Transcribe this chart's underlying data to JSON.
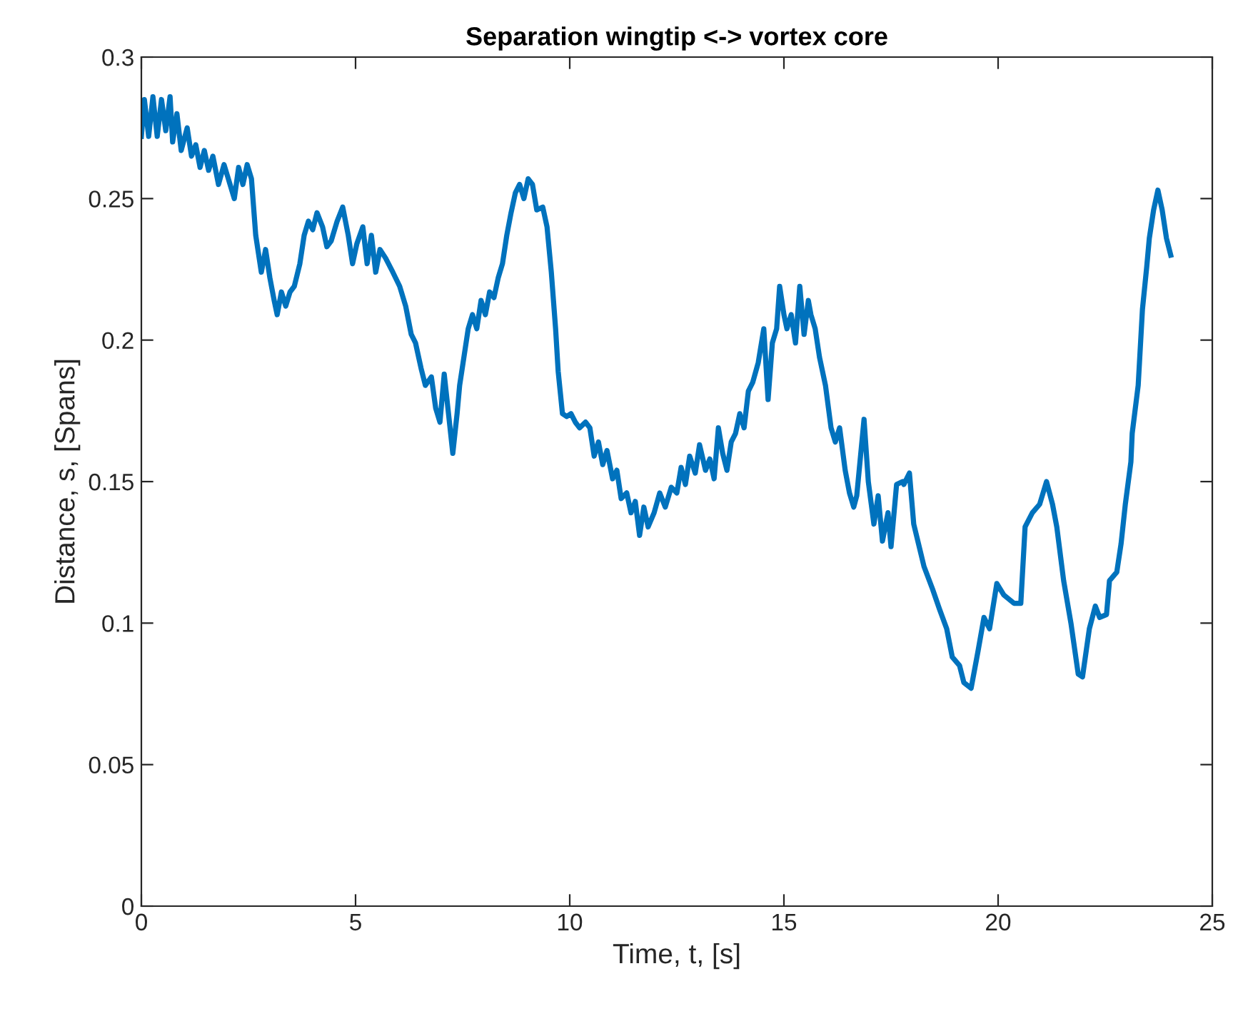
{
  "chart_data": {
    "type": "line",
    "title": "Separation wingtip <-> vortex core",
    "xlabel": "Time, t, [s]",
    "ylabel": "Distance, s, [Spans]",
    "xlim": [
      0,
      25
    ],
    "ylim": [
      0,
      0.3
    ],
    "xticks": [
      0,
      5,
      10,
      15,
      20,
      25
    ],
    "yticks": [
      0,
      0.05,
      0.1,
      0.15,
      0.2,
      0.25,
      0.3
    ],
    "grid": false,
    "marker": "none",
    "line_style": "solid",
    "series": [
      {
        "color": "#0072bd",
        "x": [
          0,
          0.07,
          0.17,
          0.27,
          0.37,
          0.47,
          0.57,
          0.67,
          0.73,
          0.83,
          0.93,
          1.07,
          1.17,
          1.27,
          1.37,
          1.47,
          1.57,
          1.67,
          1.8,
          1.93,
          2.03,
          2.17,
          2.27,
          2.37,
          2.47,
          2.57,
          2.67,
          2.8,
          2.9,
          3.0,
          3.1,
          3.17,
          3.27,
          3.37,
          3.47,
          3.57,
          3.7,
          3.8,
          3.9,
          4.0,
          4.1,
          4.23,
          4.33,
          4.43,
          4.57,
          4.7,
          4.83,
          4.93,
          5.03,
          5.17,
          5.27,
          5.37,
          5.47,
          5.57,
          5.7,
          5.87,
          6.03,
          6.17,
          6.3,
          6.4,
          6.53,
          6.63,
          6.77,
          6.87,
          6.97,
          7.07,
          7.17,
          7.27,
          7.37,
          7.43,
          7.53,
          7.63,
          7.73,
          7.83,
          7.93,
          8.03,
          8.13,
          8.23,
          8.33,
          8.43,
          8.53,
          8.63,
          8.73,
          8.83,
          8.93,
          9.03,
          9.13,
          9.23,
          9.37,
          9.47,
          9.57,
          9.67,
          9.73,
          9.83,
          9.93,
          10.03,
          10.13,
          10.23,
          10.37,
          10.47,
          10.57,
          10.67,
          10.77,
          10.87,
          11.0,
          11.1,
          11.2,
          11.33,
          11.43,
          11.53,
          11.63,
          11.73,
          11.83,
          11.97,
          12.1,
          12.23,
          12.37,
          12.5,
          12.6,
          12.7,
          12.8,
          12.93,
          13.03,
          13.17,
          13.27,
          13.37,
          13.47,
          13.57,
          13.67,
          13.77,
          13.87,
          13.97,
          14.07,
          14.17,
          14.27,
          14.4,
          14.53,
          14.63,
          14.73,
          14.83,
          14.9,
          15.0,
          15.07,
          15.17,
          15.27,
          15.37,
          15.47,
          15.57,
          15.63,
          15.73,
          15.83,
          15.97,
          16.1,
          16.2,
          16.3,
          16.43,
          16.53,
          16.63,
          16.7,
          16.87,
          16.97,
          17.1,
          17.2,
          17.3,
          17.43,
          17.5,
          17.63,
          17.77,
          17.8,
          17.93,
          18.03,
          18.27,
          18.47,
          18.63,
          18.8,
          18.93,
          19.1,
          19.2,
          19.37,
          19.53,
          19.67,
          19.8,
          19.97,
          20.13,
          20.37,
          20.53,
          20.63,
          20.8,
          20.97,
          21.13,
          21.27,
          21.37,
          21.53,
          21.7,
          21.87,
          21.97,
          22.13,
          22.27,
          22.37,
          22.53,
          22.6,
          22.77,
          22.87,
          22.97,
          23.1,
          23.13,
          23.27,
          23.37,
          23.47,
          23.53,
          23.63,
          23.73,
          23.83,
          23.93,
          24.03
        ],
        "values": [
          0.272,
          0.285,
          0.272,
          0.286,
          0.272,
          0.285,
          0.274,
          0.286,
          0.27,
          0.28,
          0.267,
          0.275,
          0.265,
          0.269,
          0.261,
          0.267,
          0.26,
          0.265,
          0.255,
          0.262,
          0.257,
          0.25,
          0.261,
          0.255,
          0.262,
          0.257,
          0.237,
          0.224,
          0.232,
          0.222,
          0.214,
          0.209,
          0.217,
          0.212,
          0.217,
          0.219,
          0.227,
          0.237,
          0.242,
          0.239,
          0.245,
          0.24,
          0.233,
          0.235,
          0.242,
          0.247,
          0.237,
          0.227,
          0.234,
          0.24,
          0.227,
          0.237,
          0.224,
          0.232,
          0.229,
          0.224,
          0.219,
          0.212,
          0.202,
          0.199,
          0.19,
          0.184,
          0.187,
          0.176,
          0.171,
          0.188,
          0.174,
          0.16,
          0.174,
          0.184,
          0.194,
          0.204,
          0.209,
          0.204,
          0.214,
          0.209,
          0.217,
          0.215,
          0.222,
          0.227,
          0.237,
          0.245,
          0.252,
          0.255,
          0.25,
          0.257,
          0.255,
          0.246,
          0.247,
          0.24,
          0.224,
          0.204,
          0.189,
          0.174,
          0.173,
          0.174,
          0.171,
          0.169,
          0.171,
          0.169,
          0.159,
          0.164,
          0.156,
          0.161,
          0.151,
          0.154,
          0.144,
          0.146,
          0.139,
          0.143,
          0.131,
          0.141,
          0.134,
          0.139,
          0.146,
          0.141,
          0.148,
          0.146,
          0.155,
          0.149,
          0.159,
          0.153,
          0.163,
          0.154,
          0.158,
          0.151,
          0.169,
          0.16,
          0.154,
          0.164,
          0.167,
          0.174,
          0.169,
          0.182,
          0.185,
          0.192,
          0.204,
          0.179,
          0.199,
          0.204,
          0.219,
          0.209,
          0.204,
          0.209,
          0.199,
          0.219,
          0.202,
          0.214,
          0.209,
          0.204,
          0.194,
          0.184,
          0.169,
          0.164,
          0.169,
          0.154,
          0.146,
          0.141,
          0.145,
          0.172,
          0.15,
          0.135,
          0.145,
          0.129,
          0.139,
          0.127,
          0.149,
          0.15,
          0.149,
          0.153,
          0.135,
          0.12,
          0.112,
          0.105,
          0.098,
          0.088,
          0.085,
          0.079,
          0.077,
          0.09,
          0.102,
          0.098,
          0.114,
          0.11,
          0.107,
          0.107,
          0.134,
          0.139,
          0.142,
          0.15,
          0.142,
          0.134,
          0.115,
          0.1,
          0.082,
          0.081,
          0.098,
          0.106,
          0.102,
          0.103,
          0.115,
          0.118,
          0.128,
          0.142,
          0.157,
          0.167,
          0.184,
          0.211,
          0.226,
          0.236,
          0.246,
          0.253,
          0.246,
          0.236,
          0.23
        ]
      }
    ]
  }
}
